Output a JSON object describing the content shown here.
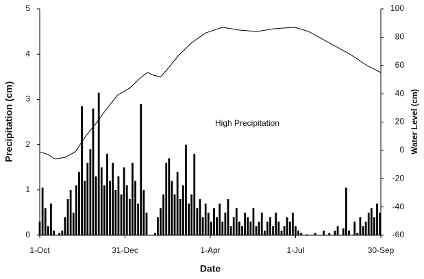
{
  "chart_data": {
    "type": "bar",
    "xlabel": "Date",
    "ylabel": "Precipitation (cm)",
    "y2label": "Water Level (cm)",
    "annotation": "High Precipitation",
    "xlim": [
      0,
      364
    ],
    "xticks": [
      {
        "value": 0,
        "label": "1-Oct"
      },
      {
        "value": 91,
        "label": "31-Dec"
      },
      {
        "value": 182,
        "label": "1-Apr"
      },
      {
        "value": 273,
        "label": "1-Jul"
      },
      {
        "value": 364,
        "label": "30-Sep"
      }
    ],
    "ylim": [
      0,
      5
    ],
    "yticks": [
      0,
      1,
      2,
      3,
      4,
      5
    ],
    "y2lim": [
      -60,
      100
    ],
    "y2ticks": [
      -60,
      -40,
      -20,
      0,
      20,
      40,
      60,
      80,
      100
    ],
    "series": [
      {
        "type": "bar",
        "color": "#000000",
        "x": [
          0,
          3,
          6,
          9,
          12,
          15,
          18,
          21,
          24,
          27,
          30,
          33,
          36,
          39,
          42,
          45,
          48,
          51,
          54,
          57,
          60,
          63,
          66,
          69,
          72,
          75,
          78,
          81,
          84,
          87,
          90,
          93,
          96,
          99,
          102,
          105,
          108,
          111,
          114,
          117,
          120,
          123,
          126,
          129,
          132,
          135,
          138,
          141,
          144,
          147,
          150,
          153,
          156,
          159,
          162,
          165,
          168,
          171,
          174,
          177,
          180,
          183,
          186,
          189,
          192,
          195,
          198,
          201,
          204,
          207,
          210,
          213,
          216,
          219,
          222,
          225,
          228,
          231,
          234,
          237,
          240,
          243,
          246,
          249,
          252,
          255,
          258,
          261,
          264,
          267,
          270,
          273,
          276,
          279,
          282,
          285,
          288,
          291,
          294,
          297,
          300,
          303,
          306,
          309,
          312,
          315,
          318,
          321,
          324,
          327,
          330,
          333,
          336,
          339,
          342,
          345,
          348,
          351,
          354,
          357,
          360,
          363
        ],
        "values": [
          0.3,
          1.05,
          0.6,
          0.2,
          0.7,
          0.1,
          0,
          0.05,
          0.1,
          0.4,
          0.8,
          1.0,
          0.5,
          1.1,
          1.4,
          2.85,
          1.2,
          1.6,
          1.9,
          2.8,
          1.3,
          3.15,
          1.5,
          1.1,
          1.8,
          1.2,
          1.6,
          1.0,
          1.3,
          0.9,
          1.5,
          1.1,
          0.8,
          1.6,
          1.2,
          0.7,
          2.9,
          1.0,
          0.5,
          0,
          0,
          0.05,
          0.4,
          0.6,
          0.9,
          1.6,
          1.7,
          1.2,
          0.9,
          1.4,
          0.8,
          1.1,
          2.0,
          0.7,
          0.9,
          1.8,
          0.6,
          0.8,
          0.4,
          0.7,
          0.5,
          0.3,
          0.6,
          0.4,
          0.7,
          0.3,
          0.5,
          0.8,
          0.2,
          0.4,
          0.6,
          0.3,
          0.2,
          0.5,
          0.4,
          0.3,
          0.6,
          0.2,
          0.3,
          0.5,
          0.1,
          0.3,
          0.4,
          0.2,
          0.5,
          0.3,
          0.1,
          0.2,
          0.4,
          0.3,
          0.5,
          0.2,
          0.1,
          0.05,
          0,
          0.02,
          0,
          0,
          0.05,
          0,
          0,
          0.1,
          0,
          0.05,
          0,
          0.1,
          0.2,
          0,
          0.15,
          1.05,
          0.1,
          0,
          0.3,
          0.05,
          0.4,
          0.2,
          0.3,
          0.5,
          0.6,
          0.4,
          0.7,
          0.5
        ]
      },
      {
        "type": "line",
        "axis": "y2",
        "color": "#000000",
        "x": [
          0,
          9,
          16,
          27,
          38,
          49,
          60,
          71,
          83,
          96,
          107,
          115,
          122,
          129,
          137,
          148,
          162,
          177,
          195,
          213,
          232,
          250,
          272,
          287,
          309,
          331,
          349,
          364
        ],
        "values": [
          -1,
          -3,
          -6,
          -5,
          -1,
          10,
          19,
          29,
          39,
          44,
          51,
          55,
          53,
          52,
          58,
          67,
          76,
          83,
          87,
          85,
          84,
          86,
          87,
          84,
          76,
          68,
          60,
          55
        ]
      }
    ]
  }
}
